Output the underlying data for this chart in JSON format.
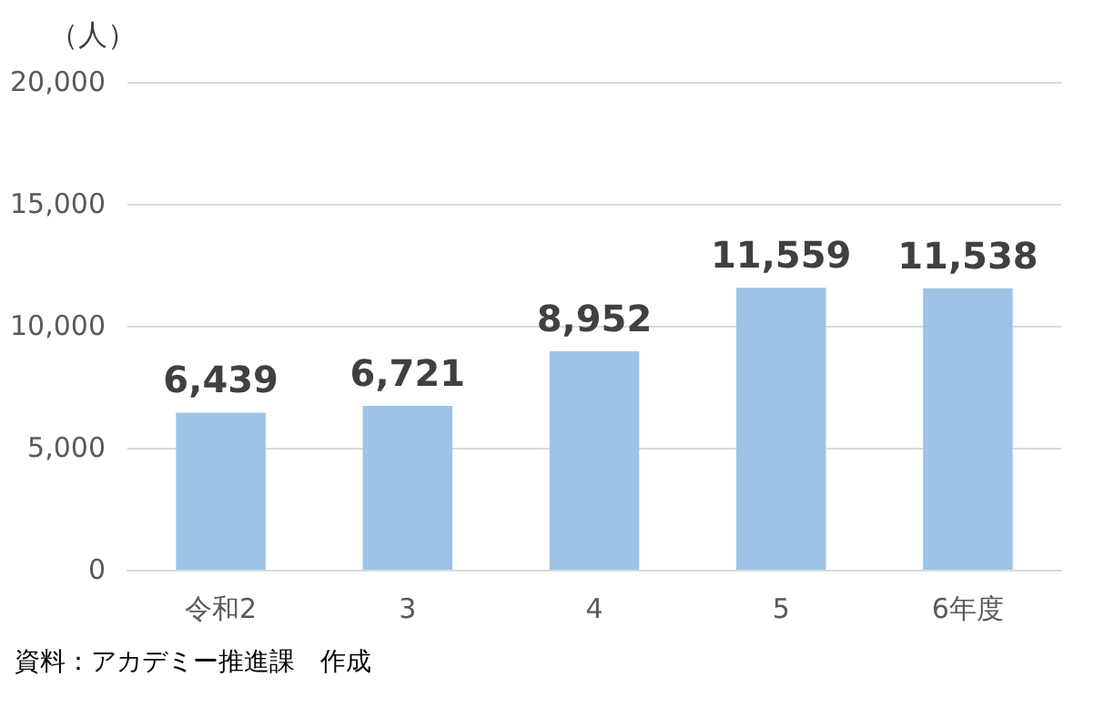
{
  "chart_data": {
    "type": "bar",
    "ylabel": "（人）",
    "categories": [
      "令和2",
      "3",
      "4",
      "5",
      "6年度"
    ],
    "values": [
      6439,
      6721,
      8952,
      11559,
      11538
    ],
    "value_labels": [
      "6,439",
      "6,721",
      "8,952",
      "11,559",
      "11,538"
    ],
    "color": "#9dc3e6",
    "ylim": [
      0,
      20000
    ],
    "yticks": [
      0,
      {
        "value": 5000,
        "label": "5,000"
      },
      {
        "value": 10000,
        "label": "10,000"
      },
      {
        "value": 15000,
        "label": "15,000"
      },
      {
        "value": 20000,
        "label": "20,000"
      }
    ],
    "grid": "y",
    "annotations": [
      "資料：アカデミー推進課　作成"
    ]
  }
}
